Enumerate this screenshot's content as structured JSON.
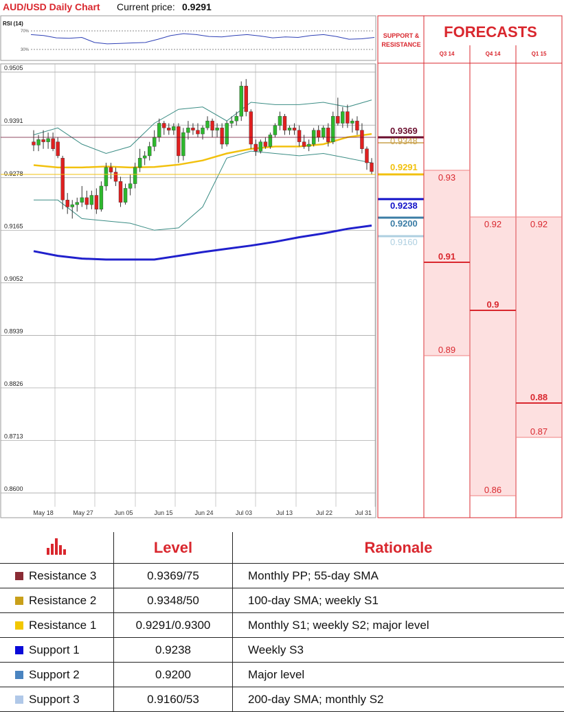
{
  "header": {
    "title": "AUD/USD Daily Chart",
    "price_label": "Current price:",
    "price_value": "0.9291"
  },
  "rsi": {
    "title": "RSI (14)",
    "ticks": [
      "70%",
      "30%"
    ]
  },
  "chart_data": {
    "type": "candlestick",
    "title": "AUD/USD Daily Chart",
    "ylim": [
      0.86,
      0.9505
    ],
    "y_ticks": [
      "0.9505",
      "0.9391",
      "0.9278",
      "0.9165",
      "0.9052",
      "0.8939",
      "0.8826",
      "0.8713",
      "0.8600"
    ],
    "x_ticks": [
      "May 18",
      "May 27",
      "Jun 05",
      "Jun 15",
      "Jun 24",
      "Jul 03",
      "Jul 13",
      "Jul 22",
      "Jul 31"
    ],
    "candles": [
      [
        0.9355,
        0.938,
        0.9335,
        0.9348
      ],
      [
        0.9348,
        0.937,
        0.9335,
        0.936
      ],
      [
        0.936,
        0.938,
        0.934,
        0.9355
      ],
      [
        0.9355,
        0.9375,
        0.934,
        0.9362
      ],
      [
        0.9362,
        0.9375,
        0.9335,
        0.934
      ],
      [
        0.9355,
        0.9365,
        0.932,
        0.9325
      ],
      [
        0.932,
        0.9325,
        0.921,
        0.923
      ],
      [
        0.923,
        0.9245,
        0.92,
        0.9215
      ],
      [
        0.9215,
        0.923,
        0.919,
        0.922
      ],
      [
        0.922,
        0.9235,
        0.9205,
        0.9225
      ],
      [
        0.9225,
        0.926,
        0.9215,
        0.9235
      ],
      [
        0.9235,
        0.925,
        0.921,
        0.922
      ],
      [
        0.922,
        0.925,
        0.921,
        0.924
      ],
      [
        0.924,
        0.9255,
        0.92,
        0.921
      ],
      [
        0.921,
        0.927,
        0.9205,
        0.926
      ],
      [
        0.926,
        0.931,
        0.925,
        0.93
      ],
      [
        0.93,
        0.931,
        0.9275,
        0.929
      ],
      [
        0.929,
        0.93,
        0.926,
        0.927
      ],
      [
        0.927,
        0.928,
        0.9215,
        0.9225
      ],
      [
        0.9225,
        0.9265,
        0.922,
        0.9255
      ],
      [
        0.9255,
        0.9285,
        0.924,
        0.9265
      ],
      [
        0.9265,
        0.931,
        0.9255,
        0.93
      ],
      [
        0.93,
        0.934,
        0.929,
        0.932
      ],
      [
        0.932,
        0.9335,
        0.9305,
        0.9325
      ],
      [
        0.9325,
        0.9355,
        0.9315,
        0.9345
      ],
      [
        0.9345,
        0.938,
        0.9335,
        0.9365
      ],
      [
        0.9365,
        0.9405,
        0.9355,
        0.9395
      ],
      [
        0.9395,
        0.94,
        0.937,
        0.9385
      ],
      [
        0.9385,
        0.9395,
        0.937,
        0.938
      ],
      [
        0.938,
        0.9395,
        0.937,
        0.9388
      ],
      [
        0.9388,
        0.9395,
        0.931,
        0.9325
      ],
      [
        0.9325,
        0.9385,
        0.9315,
        0.9375
      ],
      [
        0.9375,
        0.94,
        0.936,
        0.9385
      ],
      [
        0.9385,
        0.9395,
        0.937,
        0.938
      ],
      [
        0.938,
        0.9395,
        0.9365,
        0.9372
      ],
      [
        0.9372,
        0.939,
        0.936,
        0.9385
      ],
      [
        0.9385,
        0.941,
        0.938,
        0.94
      ],
      [
        0.94,
        0.9405,
        0.9365,
        0.938
      ],
      [
        0.938,
        0.9395,
        0.9365,
        0.9385
      ],
      [
        0.9385,
        0.9395,
        0.934,
        0.935
      ],
      [
        0.935,
        0.94,
        0.9345,
        0.9395
      ],
      [
        0.9395,
        0.941,
        0.9385,
        0.94
      ],
      [
        0.94,
        0.942,
        0.939,
        0.941
      ],
      [
        0.941,
        0.9485,
        0.94,
        0.9475
      ],
      [
        0.9475,
        0.949,
        0.941,
        0.942
      ],
      [
        0.942,
        0.9425,
        0.934,
        0.935
      ],
      [
        0.935,
        0.936,
        0.9325,
        0.9335
      ],
      [
        0.9335,
        0.936,
        0.933,
        0.9355
      ],
      [
        0.9355,
        0.9365,
        0.934,
        0.9345
      ],
      [
        0.9345,
        0.9375,
        0.934,
        0.937
      ],
      [
        0.937,
        0.9395,
        0.9365,
        0.939
      ],
      [
        0.939,
        0.942,
        0.938,
        0.941
      ],
      [
        0.941,
        0.9415,
        0.937,
        0.938
      ],
      [
        0.938,
        0.939,
        0.937,
        0.9385
      ],
      [
        0.9385,
        0.9395,
        0.937,
        0.938
      ],
      [
        0.938,
        0.939,
        0.9345,
        0.9355
      ],
      [
        0.9355,
        0.937,
        0.934,
        0.9345
      ],
      [
        0.9345,
        0.936,
        0.9335,
        0.935
      ],
      [
        0.935,
        0.9385,
        0.9345,
        0.938
      ],
      [
        0.938,
        0.939,
        0.9355,
        0.9365
      ],
      [
        0.9365,
        0.939,
        0.936,
        0.9385
      ],
      [
        0.9385,
        0.9395,
        0.9345,
        0.9355
      ],
      [
        0.9355,
        0.942,
        0.935,
        0.941
      ],
      [
        0.941,
        0.945,
        0.939,
        0.9395
      ],
      [
        0.9395,
        0.943,
        0.9385,
        0.942
      ],
      [
        0.942,
        0.9435,
        0.9385,
        0.9395
      ],
      [
        0.9395,
        0.9405,
        0.9375,
        0.94
      ],
      [
        0.94,
        0.941,
        0.937,
        0.938
      ],
      [
        0.938,
        0.9395,
        0.933,
        0.934
      ],
      [
        0.934,
        0.9345,
        0.9295,
        0.931
      ],
      [
        0.931,
        0.932,
        0.9285,
        0.9291
      ]
    ],
    "sma_fast": [
      [
        0,
        0.9305
      ],
      [
        5,
        0.93
      ],
      [
        10,
        0.93
      ],
      [
        15,
        0.9302
      ],
      [
        20,
        0.93
      ],
      [
        25,
        0.9301
      ],
      [
        30,
        0.9306
      ],
      [
        35,
        0.9315
      ],
      [
        40,
        0.933
      ],
      [
        45,
        0.934
      ],
      [
        50,
        0.9345
      ],
      [
        55,
        0.9345
      ],
      [
        60,
        0.935
      ],
      [
        65,
        0.9365
      ],
      [
        70,
        0.9372
      ]
    ],
    "sma_slow": [
      [
        0,
        0.912
      ],
      [
        5,
        0.911
      ],
      [
        10,
        0.9104
      ],
      [
        15,
        0.9102
      ],
      [
        20,
        0.9102
      ],
      [
        25,
        0.9102
      ],
      [
        30,
        0.911
      ],
      [
        35,
        0.9118
      ],
      [
        40,
        0.9125
      ],
      [
        45,
        0.9132
      ],
      [
        50,
        0.914
      ],
      [
        55,
        0.915
      ],
      [
        60,
        0.9158
      ],
      [
        65,
        0.9168
      ],
      [
        70,
        0.9175
      ]
    ],
    "bb_upper": [
      [
        0,
        0.937
      ],
      [
        5,
        0.9385
      ],
      [
        10,
        0.935
      ],
      [
        15,
        0.933
      ],
      [
        20,
        0.9345
      ],
      [
        25,
        0.9395
      ],
      [
        30,
        0.9425
      ],
      [
        35,
        0.943
      ],
      [
        40,
        0.94
      ],
      [
        45,
        0.944
      ],
      [
        50,
        0.9435
      ],
      [
        55,
        0.9435
      ],
      [
        60,
        0.944
      ],
      [
        65,
        0.943
      ],
      [
        70,
        0.9445
      ]
    ],
    "bb_lower": [
      [
        0,
        0.923
      ],
      [
        5,
        0.923
      ],
      [
        10,
        0.919
      ],
      [
        15,
        0.9185
      ],
      [
        20,
        0.918
      ],
      [
        25,
        0.9165
      ],
      [
        30,
        0.917
      ],
      [
        35,
        0.9215
      ],
      [
        40,
        0.932
      ],
      [
        45,
        0.9335
      ],
      [
        50,
        0.933
      ],
      [
        55,
        0.9325
      ],
      [
        60,
        0.933
      ],
      [
        65,
        0.932
      ],
      [
        70,
        0.931
      ]
    ],
    "rsi_values": [
      62,
      60,
      55,
      54,
      56,
      45,
      42,
      43,
      44,
      45,
      52,
      60,
      64,
      62,
      58,
      57,
      60,
      62,
      59,
      55,
      57,
      56,
      60,
      62,
      58,
      52,
      53,
      56
    ]
  },
  "levels": [
    {
      "label": "0.9369",
      "color": "#6a0e2e"
    },
    {
      "label": "0.9348",
      "color": "#c9a14a"
    },
    {
      "label": "0.9291",
      "color": "#f2c10e"
    },
    {
      "label": "0.9238",
      "color": "#1010c8"
    },
    {
      "label": "0.9200",
      "color": "#3a7ca5"
    },
    {
      "label": "0.9160",
      "color": "#aecfe0"
    }
  ],
  "forecasts": {
    "title": "FORECASTS",
    "sr_header": [
      "SUPPORT &",
      "RESISTANCE"
    ],
    "columns": [
      {
        "label": "Q3 14",
        "high": "0.93",
        "mid": "0.91",
        "low": "0.89"
      },
      {
        "label": "Q4 14",
        "high": "0.92",
        "mid": "0.9",
        "low": "0.86"
      },
      {
        "label": "Q1 15",
        "high": "0.92",
        "mid": "0.88",
        "low": "0.87"
      }
    ]
  },
  "table": {
    "headers": [
      "Level",
      "Rationale"
    ],
    "rows": [
      {
        "name": "Resistance 3",
        "color": "#8a2c35",
        "level": "0.9369/75",
        "rationale": "Monthly PP; 55-day SMA"
      },
      {
        "name": "Resistance 2",
        "color": "#c9a01a",
        "level": "0.9348/50",
        "rationale": "100-day SMA; weekly S1"
      },
      {
        "name": "Resistance 1",
        "color": "#f2c700",
        "level": "0.9291/0.9300",
        "rationale": "Monthly S1; weekly S2; major level"
      },
      {
        "name": "Support 1",
        "color": "#0a0ad8",
        "level": "0.9238",
        "rationale": "Weekly S3"
      },
      {
        "name": "Support 2",
        "color": "#4a84c0",
        "level": "0.9200",
        "rationale": "Major level"
      },
      {
        "name": "Support 3",
        "color": "#b0c8e8",
        "level": "0.9160/53",
        "rationale": "200-day SMA; monthly S2"
      }
    ]
  }
}
